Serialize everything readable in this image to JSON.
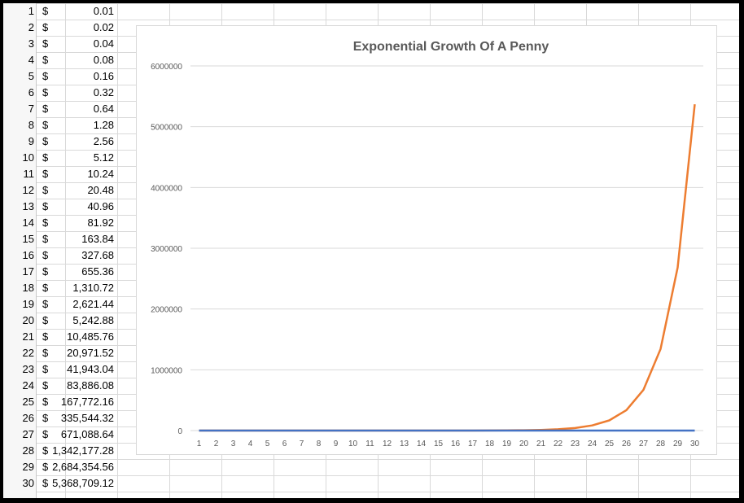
{
  "sheet": {
    "rows": [
      {
        "n": "1",
        "cur": "$",
        "val": "0.01"
      },
      {
        "n": "2",
        "cur": "$",
        "val": "0.02"
      },
      {
        "n": "3",
        "cur": "$",
        "val": "0.04"
      },
      {
        "n": "4",
        "cur": "$",
        "val": "0.08"
      },
      {
        "n": "5",
        "cur": "$",
        "val": "0.16"
      },
      {
        "n": "6",
        "cur": "$",
        "val": "0.32"
      },
      {
        "n": "7",
        "cur": "$",
        "val": "0.64"
      },
      {
        "n": "8",
        "cur": "$",
        "val": "1.28"
      },
      {
        "n": "9",
        "cur": "$",
        "val": "2.56"
      },
      {
        "n": "10",
        "cur": "$",
        "val": "5.12"
      },
      {
        "n": "11",
        "cur": "$",
        "val": "10.24"
      },
      {
        "n": "12",
        "cur": "$",
        "val": "20.48"
      },
      {
        "n": "13",
        "cur": "$",
        "val": "40.96"
      },
      {
        "n": "14",
        "cur": "$",
        "val": "81.92"
      },
      {
        "n": "15",
        "cur": "$",
        "val": "163.84"
      },
      {
        "n": "16",
        "cur": "$",
        "val": "327.68"
      },
      {
        "n": "17",
        "cur": "$",
        "val": "655.36"
      },
      {
        "n": "18",
        "cur": "$",
        "val": "1,310.72"
      },
      {
        "n": "19",
        "cur": "$",
        "val": "2,621.44"
      },
      {
        "n": "20",
        "cur": "$",
        "val": "5,242.88"
      },
      {
        "n": "21",
        "cur": "$",
        "val": "10,485.76"
      },
      {
        "n": "22",
        "cur": "$",
        "val": "20,971.52"
      },
      {
        "n": "23",
        "cur": "$",
        "val": "41,943.04"
      },
      {
        "n": "24",
        "cur": "$",
        "val": "83,886.08"
      },
      {
        "n": "25",
        "cur": "$",
        "val": "167,772.16"
      },
      {
        "n": "26",
        "cur": "$",
        "val": "335,544.32"
      },
      {
        "n": "27",
        "cur": "$",
        "val": "671,088.64"
      },
      {
        "n": "28",
        "cur": "$",
        "val": "1,342,177.28"
      },
      {
        "n": "29",
        "cur": "$",
        "val": "2,684,354.56"
      },
      {
        "n": "30",
        "cur": "$",
        "val": "5,368,709.12"
      }
    ]
  },
  "colors": {
    "series_value": "#ED7D31",
    "series_day": "#4472C4",
    "gridline": "#d9d9d9",
    "text": "#595959"
  },
  "chart_data": {
    "type": "line",
    "title": "Exponential Growth Of A Penny",
    "xlabel": "",
    "ylabel": "",
    "categories": [
      "1",
      "2",
      "3",
      "4",
      "5",
      "6",
      "7",
      "8",
      "9",
      "10",
      "11",
      "12",
      "13",
      "14",
      "15",
      "16",
      "17",
      "18",
      "19",
      "20",
      "21",
      "22",
      "23",
      "24",
      "25",
      "26",
      "27",
      "28",
      "29",
      "30"
    ],
    "ylim": [
      0,
      6000000
    ],
    "yticks": [
      "0",
      "1000000",
      "2000000",
      "3000000",
      "4000000",
      "5000000",
      "6000000"
    ],
    "grid": true,
    "legend": "none",
    "series": [
      {
        "values": [
          1,
          2,
          3,
          4,
          5,
          6,
          7,
          8,
          9,
          10,
          11,
          12,
          13,
          14,
          15,
          16,
          17,
          18,
          19,
          20,
          21,
          22,
          23,
          24,
          25,
          26,
          27,
          28,
          29,
          30
        ]
      },
      {
        "values": [
          0.01,
          0.02,
          0.04,
          0.08,
          0.16,
          0.32,
          0.64,
          1.28,
          2.56,
          5.12,
          10.24,
          20.48,
          40.96,
          81.92,
          163.84,
          327.68,
          655.36,
          1310.72,
          2621.44,
          5242.88,
          10485.76,
          20971.52,
          41943.04,
          83886.08,
          167772.16,
          335544.32,
          671088.64,
          1342177.28,
          2684354.56,
          5368709.12
        ]
      }
    ]
  }
}
